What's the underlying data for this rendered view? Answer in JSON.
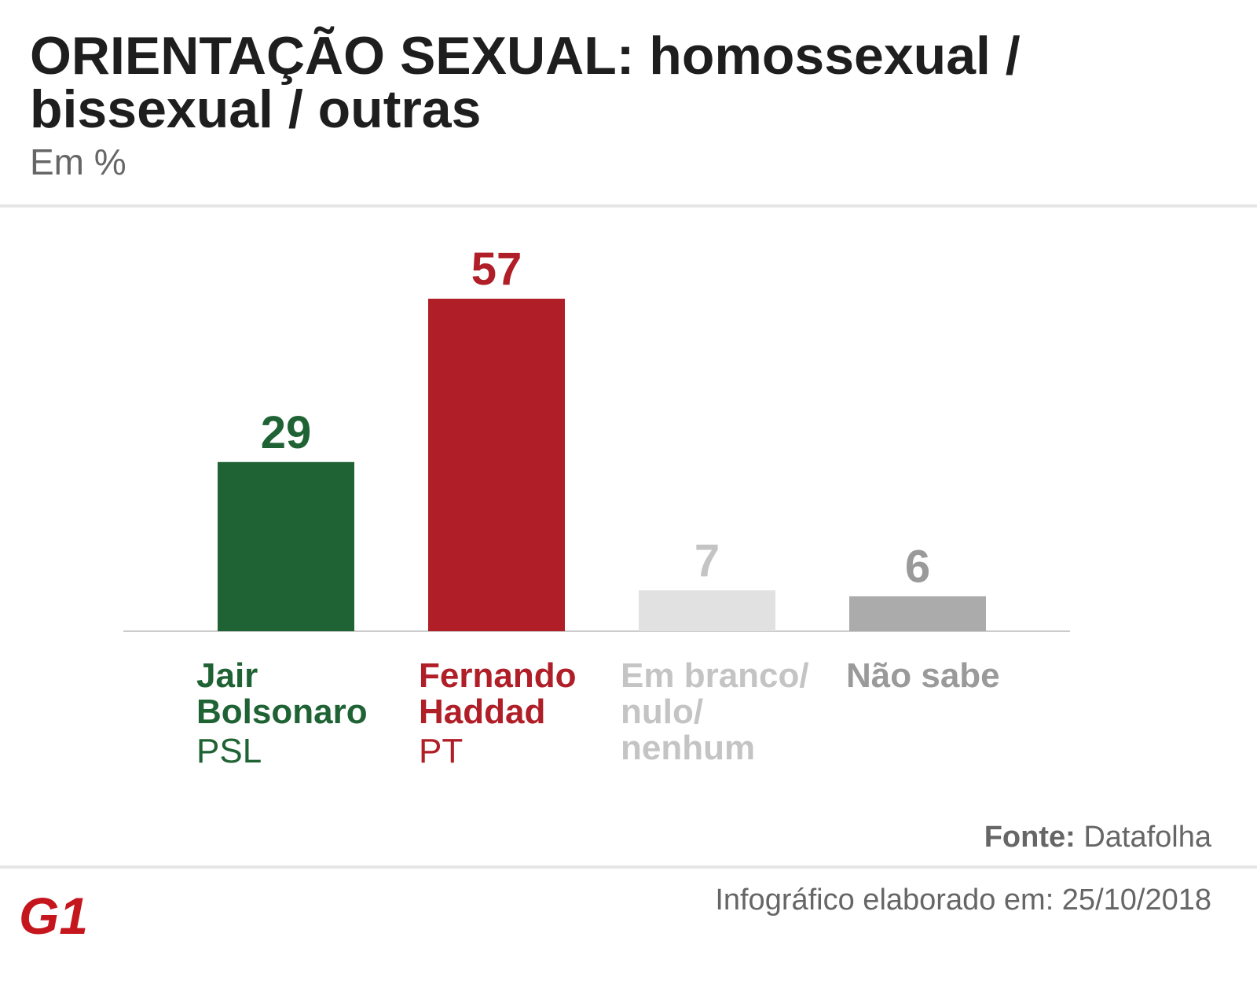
{
  "chart_data": {
    "type": "bar",
    "title": [
      "ORIENTAÇÃO SEXUAL: homossexual /",
      "bissexual / outras"
    ],
    "subtitle": "Em %",
    "categories": [
      [
        "Jair",
        "Bolsonaro"
      ],
      [
        "Fernando",
        "Haddad"
      ],
      [
        "Em branco/",
        "nulo/",
        "nenhum"
      ],
      [
        "Não sabe"
      ]
    ],
    "parties": [
      "PSL",
      "PT",
      null,
      null
    ],
    "values": [
      29,
      57,
      7,
      6
    ],
    "colors": [
      "#1f6234",
      "#b01e27",
      "#e1e1e1",
      "#ababab"
    ],
    "label_colors": [
      "#1f6234",
      "#b01e27",
      "#c4c4c4",
      "#9a9a9a"
    ],
    "source_label": "Fonte:",
    "source": "Datafolha",
    "note": "Infográfico elaborado em: 25/10/2018",
    "logo": "G1"
  }
}
